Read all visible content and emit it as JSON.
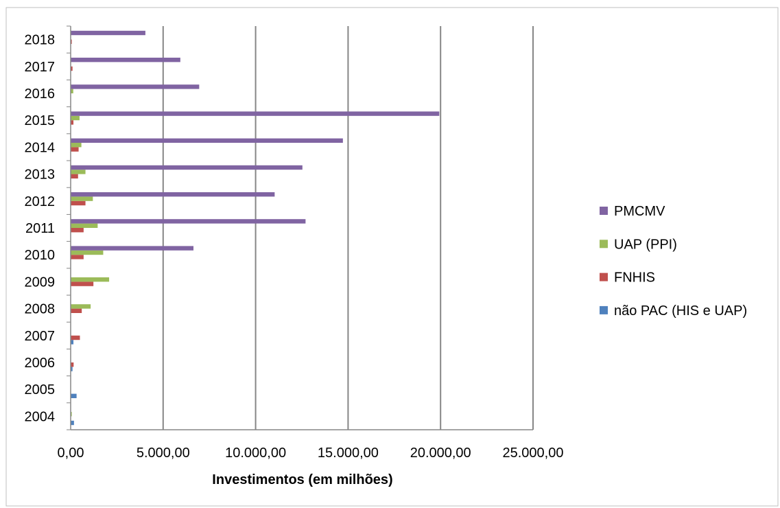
{
  "chart_data": {
    "type": "bar",
    "orientation": "horizontal",
    "categories": [
      "2004",
      "2005",
      "2006",
      "2007",
      "2008",
      "2009",
      "2010",
      "2011",
      "2012",
      "2013",
      "2014",
      "2015",
      "2016",
      "2017",
      "2018"
    ],
    "series": [
      {
        "name": "não PAC (HIS e UAP)",
        "color": "#4F81BD",
        "values": [
          180,
          320,
          100,
          150,
          0,
          0,
          0,
          0,
          0,
          0,
          0,
          0,
          0,
          0,
          0
        ]
      },
      {
        "name": "FNHIS",
        "color": "#C0504D",
        "values": [
          0,
          0,
          160,
          500,
          600,
          1230,
          700,
          700,
          800,
          400,
          430,
          150,
          0,
          100,
          60
        ]
      },
      {
        "name": "UAP (PPI)",
        "color": "#9BBB59",
        "values": [
          60,
          0,
          0,
          0,
          1080,
          2080,
          1760,
          1460,
          1200,
          800,
          580,
          480,
          140,
          0,
          0
        ]
      },
      {
        "name": "PMCMV",
        "color": "#8064A2",
        "values": [
          0,
          0,
          0,
          0,
          0,
          0,
          6640,
          12700,
          11030,
          12530,
          14720,
          19930,
          6950,
          5930,
          4040
        ]
      }
    ],
    "xlabel": "Investimentos (em milhões)",
    "xlim": [
      0,
      25000
    ],
    "xticks": [
      "0,00",
      "5.000,00",
      "10.000,00",
      "15.000,00",
      "20.000,00",
      "25.000,00"
    ],
    "legend_position": "right",
    "legend_order": [
      "PMCMV",
      "UAP (PPI)",
      "FNHIS",
      "não PAC (HIS e UAP)"
    ],
    "grid": "vertical-major"
  }
}
